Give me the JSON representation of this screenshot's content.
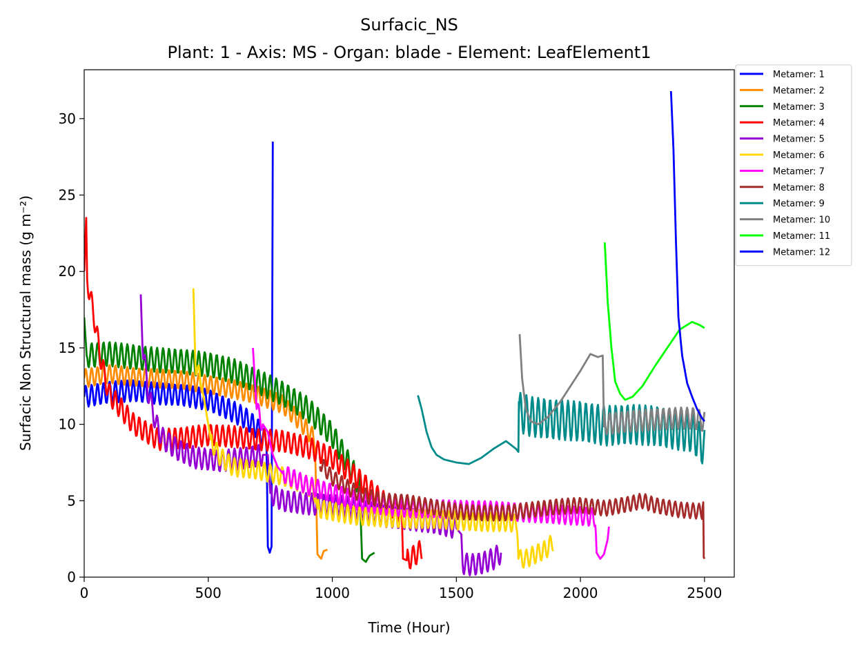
{
  "chart_data": {
    "type": "line",
    "title": "Surfacic_NS",
    "subtitle": "Plant: 1 - Axis: MS - Organ: blade - Element: LeafElement1",
    "xlabel": "Time (Hour)",
    "ylabel": "Surfacic Non Structural mass (g m⁻²)",
    "xlim": [
      0,
      2620
    ],
    "ylim": [
      0,
      33.2
    ],
    "xticks": [
      0,
      500,
      1000,
      1500,
      2000,
      2500
    ],
    "yticks": [
      0,
      5,
      10,
      15,
      20,
      25,
      30
    ],
    "legend_position": "outside-top-right",
    "grid": false,
    "series": [
      {
        "name": "Metamer: 1",
        "color": "#0000ff",
        "osc": 0.7,
        "period": 24,
        "points": [
          [
            0,
            11.8
          ],
          [
            100,
            12.1
          ],
          [
            200,
            12.2
          ],
          [
            300,
            12.0
          ],
          [
            400,
            11.9
          ],
          [
            500,
            11.6
          ],
          [
            580,
            11.0
          ],
          [
            650,
            10.4
          ],
          [
            700,
            9.7
          ],
          [
            735,
            8.8
          ],
          [
            740,
            2.0
          ],
          [
            748,
            1.6
          ],
          [
            755,
            2.0
          ],
          [
            760,
            28.5
          ]
        ]
      },
      {
        "name": "Metamer: 2",
        "color": "#ff8c00",
        "osc": 0.6,
        "period": 24,
        "points": [
          [
            0,
            13.0
          ],
          [
            100,
            13.3
          ],
          [
            200,
            13.1
          ],
          [
            300,
            13.0
          ],
          [
            400,
            12.9
          ],
          [
            500,
            12.6
          ],
          [
            600,
            12.3
          ],
          [
            700,
            11.9
          ],
          [
            800,
            11.3
          ],
          [
            870,
            10.2
          ],
          [
            930,
            9.0
          ],
          [
            940,
            1.5
          ],
          [
            955,
            1.2
          ],
          [
            965,
            1.7
          ],
          [
            980,
            1.8
          ]
        ]
      },
      {
        "name": "Metamer: 3",
        "color": "#008000",
        "osc": 0.8,
        "period": 24,
        "points": [
          [
            0,
            17.0
          ],
          [
            10,
            14.5
          ],
          [
            100,
            14.6
          ],
          [
            200,
            14.4
          ],
          [
            300,
            14.2
          ],
          [
            400,
            14.1
          ],
          [
            500,
            13.9
          ],
          [
            600,
            13.5
          ],
          [
            700,
            12.8
          ],
          [
            800,
            12.0
          ],
          [
            900,
            11.0
          ],
          [
            1000,
            9.3
          ],
          [
            1080,
            7.0
          ],
          [
            1110,
            6.0
          ],
          [
            1120,
            1.2
          ],
          [
            1135,
            1.0
          ],
          [
            1150,
            1.4
          ],
          [
            1170,
            1.6
          ]
        ]
      },
      {
        "name": "Metamer: 4",
        "color": "#ff0000",
        "osc": 0.7,
        "period": 24,
        "points": [
          [
            0,
            20.0
          ],
          [
            8,
            23.5
          ],
          [
            12,
            19.5
          ],
          [
            40,
            17.0
          ],
          [
            70,
            14.0
          ],
          [
            100,
            12.0
          ],
          [
            150,
            11.0
          ],
          [
            200,
            10.0
          ],
          [
            300,
            9.0
          ],
          [
            400,
            9.1
          ],
          [
            500,
            9.3
          ],
          [
            600,
            9.2
          ],
          [
            700,
            9.0
          ],
          [
            800,
            8.9
          ],
          [
            900,
            8.5
          ],
          [
            1000,
            7.8
          ],
          [
            1100,
            6.5
          ],
          [
            1200,
            5.0
          ],
          [
            1280,
            4.2
          ],
          [
            1285,
            1.2
          ],
          [
            1300,
            1.1
          ],
          [
            1330,
            1.4
          ],
          [
            1360,
            1.8
          ]
        ]
      },
      {
        "name": "Metamer: 5",
        "color": "#9400d3",
        "osc": 0.7,
        "period": 24,
        "points": [
          [
            228,
            18.5
          ],
          [
            235,
            15.0
          ],
          [
            260,
            12.0
          ],
          [
            290,
            10.0
          ],
          [
            320,
            9.0
          ],
          [
            380,
            8.3
          ],
          [
            450,
            7.8
          ],
          [
            550,
            7.6
          ],
          [
            650,
            7.8
          ],
          [
            720,
            8.0
          ],
          [
            740,
            8.0
          ],
          [
            750,
            5.5
          ],
          [
            800,
            5.0
          ],
          [
            900,
            4.8
          ],
          [
            1000,
            4.7
          ],
          [
            1100,
            4.5
          ],
          [
            1200,
            4.0
          ],
          [
            1300,
            3.8
          ],
          [
            1400,
            3.6
          ],
          [
            1500,
            3.2
          ],
          [
            1520,
            2.8
          ],
          [
            1525,
            0.9
          ],
          [
            1560,
            0.8
          ],
          [
            1600,
            0.9
          ],
          [
            1650,
            1.2
          ],
          [
            1680,
            1.6
          ]
        ]
      },
      {
        "name": "Metamer: 6",
        "color": "#ffd700",
        "osc": 0.6,
        "period": 24,
        "points": [
          [
            440,
            18.9
          ],
          [
            448,
            14.0
          ],
          [
            470,
            12.8
          ],
          [
            490,
            11.0
          ],
          [
            510,
            9.0
          ],
          [
            540,
            8.0
          ],
          [
            600,
            7.2
          ],
          [
            700,
            7.0
          ],
          [
            800,
            6.6
          ],
          [
            900,
            6.0
          ],
          [
            930,
            5.5
          ],
          [
            940,
            4.5
          ],
          [
            1000,
            4.3
          ],
          [
            1100,
            4.0
          ],
          [
            1200,
            3.9
          ],
          [
            1300,
            3.8
          ],
          [
            1400,
            3.8
          ],
          [
            1500,
            3.7
          ],
          [
            1600,
            3.6
          ],
          [
            1700,
            3.6
          ],
          [
            1745,
            3.5
          ],
          [
            1750,
            1.2
          ],
          [
            1780,
            1.2
          ],
          [
            1820,
            1.5
          ],
          [
            1860,
            1.8
          ],
          [
            1890,
            2.3
          ]
        ]
      },
      {
        "name": "Metamer: 7",
        "color": "#ff00ff",
        "osc": 0.6,
        "period": 24,
        "points": [
          [
            680,
            15.0
          ],
          [
            695,
            11.0
          ],
          [
            720,
            10.0
          ],
          [
            740,
            9.5
          ],
          [
            760,
            8.0
          ],
          [
            780,
            7.2
          ],
          [
            800,
            6.8
          ],
          [
            900,
            6.0
          ],
          [
            1000,
            5.5
          ],
          [
            1100,
            5.0
          ],
          [
            1200,
            4.7
          ],
          [
            1300,
            4.5
          ],
          [
            1400,
            4.5
          ],
          [
            1500,
            4.4
          ],
          [
            1600,
            4.4
          ],
          [
            1700,
            4.3
          ],
          [
            1800,
            4.2
          ],
          [
            1900,
            4.1
          ],
          [
            2000,
            4.0
          ],
          [
            2060,
            3.9
          ],
          [
            2065,
            1.6
          ],
          [
            2080,
            1.2
          ],
          [
            2095,
            1.5
          ],
          [
            2110,
            2.5
          ],
          [
            2115,
            3.3
          ]
        ]
      },
      {
        "name": "Metamer: 8",
        "color": "#a52a2a",
        "osc": 0.5,
        "period": 24,
        "points": [
          [
            950,
            7.5
          ],
          [
            1000,
            6.5
          ],
          [
            1100,
            5.5
          ],
          [
            1200,
            5.0
          ],
          [
            1300,
            4.9
          ],
          [
            1400,
            4.6
          ],
          [
            1500,
            4.3
          ],
          [
            1600,
            4.2
          ],
          [
            1700,
            4.2
          ],
          [
            1800,
            4.4
          ],
          [
            1900,
            4.6
          ],
          [
            2000,
            4.7
          ],
          [
            2100,
            4.5
          ],
          [
            2200,
            4.8
          ],
          [
            2250,
            5.0
          ],
          [
            2300,
            4.7
          ],
          [
            2400,
            4.4
          ],
          [
            2490,
            4.3
          ],
          [
            2495,
            4.9
          ],
          [
            2497,
            1.3
          ],
          [
            2500,
            1.2
          ]
        ]
      },
      {
        "name": "Metamer: 9",
        "color": "#008b8b",
        "osc": 0.0,
        "period": 24,
        "points": [
          [
            1345,
            11.9
          ],
          [
            1360,
            11.0
          ],
          [
            1380,
            9.5
          ],
          [
            1400,
            8.5
          ],
          [
            1420,
            8.0
          ],
          [
            1450,
            7.7
          ],
          [
            1500,
            7.5
          ],
          [
            1550,
            7.4
          ],
          [
            1600,
            7.8
          ],
          [
            1650,
            8.4
          ],
          [
            1700,
            8.9
          ],
          [
            1740,
            8.4
          ],
          [
            1750,
            8.2
          ],
          [
            1752,
            11.5
          ]
        ]
      },
      {
        "name": "Metamer: 9",
        "color": "#008b8b",
        "osc": 1.3,
        "period": 24,
        "nolegend": true,
        "points": [
          [
            1752,
            10.8
          ],
          [
            1800,
            10.5
          ],
          [
            1900,
            10.3
          ],
          [
            2000,
            10.2
          ],
          [
            2100,
            9.9
          ],
          [
            2200,
            10.0
          ],
          [
            2300,
            9.9
          ],
          [
            2400,
            9.6
          ],
          [
            2450,
            9.5
          ],
          [
            2500,
            8.5
          ]
        ]
      },
      {
        "name": "Metamer: 10",
        "color": "#808080",
        "osc": 0.0,
        "period": 24,
        "points": [
          [
            1755,
            15.9
          ],
          [
            1765,
            13.0
          ],
          [
            1780,
            11.0
          ],
          [
            1800,
            10.2
          ],
          [
            1830,
            10.0
          ],
          [
            1870,
            10.5
          ],
          [
            1920,
            11.5
          ],
          [
            1960,
            12.5
          ],
          [
            2000,
            13.5
          ],
          [
            2040,
            14.6
          ],
          [
            2070,
            14.4
          ],
          [
            2090,
            14.5
          ],
          [
            2095,
            9.8
          ]
        ]
      },
      {
        "name": "Metamer: 10",
        "color": "#808080",
        "osc": 0.7,
        "period": 24,
        "nolegend": true,
        "points": [
          [
            2095,
            10.0
          ],
          [
            2150,
            10.1
          ],
          [
            2200,
            10.2
          ],
          [
            2300,
            10.3
          ],
          [
            2400,
            10.4
          ],
          [
            2450,
            10.4
          ],
          [
            2500,
            10.2
          ]
        ]
      },
      {
        "name": "Metamer: 11",
        "color": "#00ff00",
        "osc": 0.0,
        "period": 24,
        "points": [
          [
            2098,
            21.9
          ],
          [
            2110,
            18.0
          ],
          [
            2125,
            15.0
          ],
          [
            2140,
            12.8
          ],
          [
            2160,
            12.0
          ],
          [
            2180,
            11.6
          ],
          [
            2210,
            11.8
          ],
          [
            2250,
            12.5
          ],
          [
            2300,
            13.8
          ],
          [
            2350,
            15.0
          ],
          [
            2400,
            16.2
          ],
          [
            2450,
            16.7
          ],
          [
            2480,
            16.5
          ],
          [
            2500,
            16.3
          ]
        ]
      },
      {
        "name": "Metamer: 12",
        "color": "#0000ff",
        "osc": 0.0,
        "period": 24,
        "points": [
          [
            2365,
            31.8
          ],
          [
            2375,
            28.0
          ],
          [
            2385,
            22.0
          ],
          [
            2395,
            17.0
          ],
          [
            2410,
            14.5
          ],
          [
            2430,
            12.7
          ],
          [
            2450,
            11.8
          ],
          [
            2470,
            11.0
          ],
          [
            2490,
            10.4
          ],
          [
            2500,
            10.2
          ]
        ]
      }
    ]
  }
}
